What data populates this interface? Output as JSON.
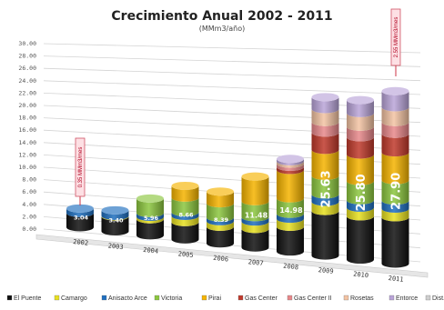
{
  "chart_data": {
    "type": "bar",
    "subtype": "stacked-3d-cylinder",
    "title": "Crecimiento Anual 2002 - 2011",
    "subtitle": "(MMm3/año)",
    "categories": [
      "2002",
      "2003",
      "2004",
      "2005",
      "2006",
      "2007",
      "2008",
      "2009",
      "2010",
      "2011"
    ],
    "ylim": [
      0,
      30
    ],
    "y_ticks": [
      "0.00",
      "2.00",
      "4.00",
      "6.00",
      "8.00",
      "10.00",
      "12.00",
      "14.00",
      "16.00",
      "18.00",
      "20.00",
      "22.00",
      "24.00",
      "26.00",
      "28.00",
      "30.00"
    ],
    "totals": [
      3.04,
      3.4,
      5.96,
      8.66,
      8.39,
      11.48,
      14.98,
      25.63,
      25.8,
      27.9
    ],
    "total_labels": [
      "3.04",
      "3.40",
      "5.96",
      "8.66",
      "8.39",
      "11.48",
      "14.98",
      "25.63",
      "25.80",
      "27.90"
    ],
    "series": [
      {
        "name": "El Puente",
        "color": "#111111",
        "values": [
          2.3,
          2.4,
          2.6,
          2.8,
          2.7,
          3.0,
          4.0,
          7.2,
          7.0,
          7.5
        ]
      },
      {
        "name": "Camargo",
        "color": "#e8e020",
        "values": [
          0.0,
          0.1,
          0.4,
          1.0,
          0.9,
          1.2,
          1.3,
          1.5,
          1.4,
          1.4
        ]
      },
      {
        "name": "Anisacto Arce",
        "color": "#1f6fbf",
        "values": [
          0.74,
          0.9,
          0.6,
          0.6,
          0.6,
          0.7,
          0.8,
          1.2,
          1.2,
          1.3
        ]
      },
      {
        "name": "Victoria",
        "color": "#8cc63f",
        "values": [
          0.0,
          0.0,
          2.36,
          2.36,
          2.29,
          2.58,
          2.5,
          3.0,
          3.1,
          3.3
        ]
      },
      {
        "name": "Pirai",
        "color": "#f5b400",
        "values": [
          0.0,
          0.0,
          0.0,
          1.9,
          1.9,
          4.0,
          4.6,
          4.2,
          4.3,
          4.5
        ]
      },
      {
        "name": "Gas Center",
        "color": "#c0392b",
        "values": [
          0.0,
          0.0,
          0.0,
          0.0,
          0.0,
          0.0,
          0.5,
          2.8,
          2.8,
          3.0
        ]
      },
      {
        "name": "Gas Center II",
        "color": "#e8888a",
        "values": [
          0.0,
          0.0,
          0.0,
          0.0,
          0.0,
          0.0,
          0.5,
          1.7,
          1.7,
          1.9
        ]
      },
      {
        "name": "Rosetas",
        "color": "#f3c3a3",
        "values": [
          0.0,
          0.0,
          0.0,
          0.0,
          0.0,
          0.0,
          0.4,
          2.1,
          2.2,
          2.4
        ]
      },
      {
        "name": "Entorce",
        "color": "#b9a4d8",
        "values": [
          0.0,
          0.0,
          0.0,
          0.0,
          0.0,
          0.0,
          0.38,
          1.93,
          2.1,
          2.6
        ]
      },
      {
        "name": "Dist.",
        "color": "#cfcfcf",
        "values": [
          0.0,
          0.0,
          0.0,
          0.0,
          0.0,
          0.0,
          0.0,
          0.0,
          0.0,
          0.0
        ]
      }
    ],
    "annotations": [
      {
        "text": "0.35 MMm3/mes",
        "category": "2002"
      },
      {
        "text": "2.55 MMm3/mes",
        "category": "2011"
      }
    ],
    "legend_position": "bottom",
    "grid": true
  }
}
